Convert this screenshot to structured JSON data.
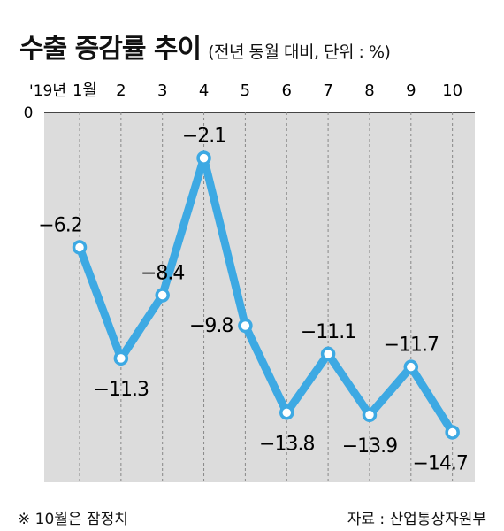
{
  "header": {
    "title": "수출 증감률 추이",
    "subtitle": "(전년 동월 대비, 단위 : %)"
  },
  "footer": {
    "note": "※ 10월은 잠정치",
    "source": "자료 : 산업통상자원부"
  },
  "chart_data": {
    "type": "line",
    "title": "수출 증감률 추이",
    "subtitle": "(전년 동월 대비, 단위 : %)",
    "year_label": "'19년",
    "categories": [
      "1월",
      "2",
      "3",
      "4",
      "5",
      "6",
      "7",
      "8",
      "9",
      "10"
    ],
    "values": [
      -6.2,
      -11.3,
      -8.4,
      -2.1,
      -9.8,
      -13.8,
      -11.1,
      -13.9,
      -11.7,
      -14.7
    ],
    "data_labels": [
      "−6.2",
      "−11.3",
      "−8.4",
      "−2.1",
      "−9.8",
      "−13.8",
      "−11.1",
      "−13.9",
      "−11.7",
      "−14.7"
    ],
    "y_tick_label": "0",
    "ylim": [
      -17,
      0
    ],
    "grid": "vertical dashed",
    "line_color": "#3da9e3",
    "plot_background": "#dcdcdc",
    "label_positions": [
      "above",
      "below",
      "above",
      "above",
      "left",
      "below",
      "above",
      "below",
      "above",
      "below"
    ]
  }
}
